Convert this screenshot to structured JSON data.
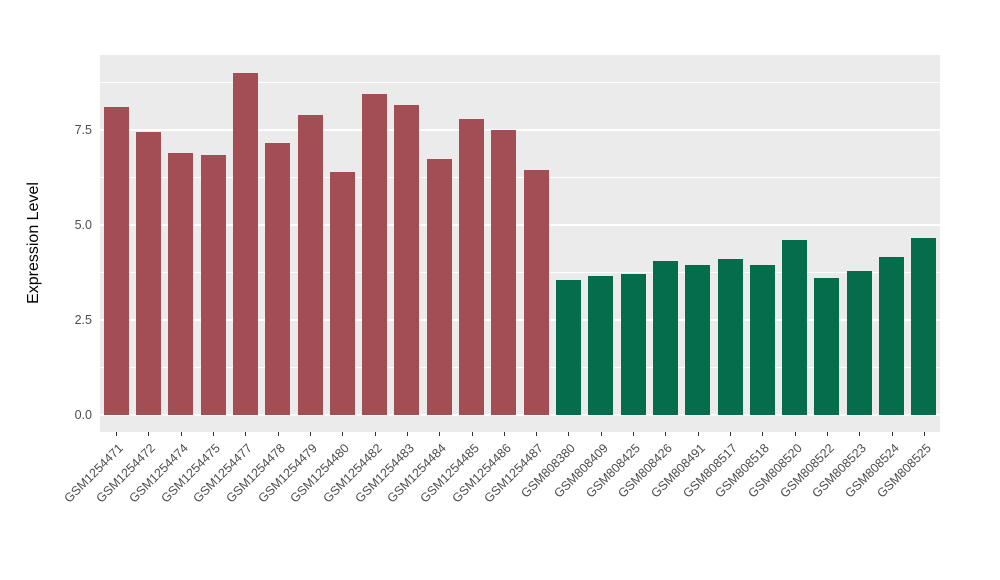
{
  "chart_data": {
    "type": "bar",
    "title": "",
    "xlabel": "",
    "ylabel": "Expression Level",
    "ylim": [
      0,
      9.5
    ],
    "grid": true,
    "legend": "none",
    "ytick_values": [
      0,
      2.5,
      5,
      7.5
    ],
    "ytick_labels": [
      "0.0",
      "2.5",
      "5.0",
      "7.5"
    ],
    "minor_tick_values": [
      1.25,
      3.75,
      6.25,
      8.75
    ],
    "categories": [
      "GSM1254471",
      "GSM1254472",
      "GSM1254474",
      "GSM1254475",
      "GSM1254477",
      "GSM1254478",
      "GSM1254479",
      "GSM1254480",
      "GSM1254482",
      "GSM1254483",
      "GSM1254484",
      "GSM1254485",
      "GSM1254486",
      "GSM1254487",
      "GSM808380",
      "GSM808409",
      "GSM808425",
      "GSM808426",
      "GSM808491",
      "GSM808517",
      "GSM808518",
      "GSM808520",
      "GSM808522",
      "GSM808523",
      "GSM808524",
      "GSM808525"
    ],
    "values": [
      8.1,
      7.45,
      6.9,
      6.85,
      9.0,
      7.15,
      7.9,
      6.4,
      8.45,
      8.15,
      6.75,
      7.8,
      7.5,
      6.45,
      3.55,
      3.65,
      3.7,
      4.05,
      3.95,
      4.1,
      3.95,
      4.6,
      3.6,
      3.8,
      4.15,
      4.65
    ],
    "group_split_index": 14,
    "group_colors": [
      "#A34E55",
      "#046E4C"
    ],
    "panel_bg": "#EBEBEB",
    "grid_color": "#FFFFFF"
  }
}
